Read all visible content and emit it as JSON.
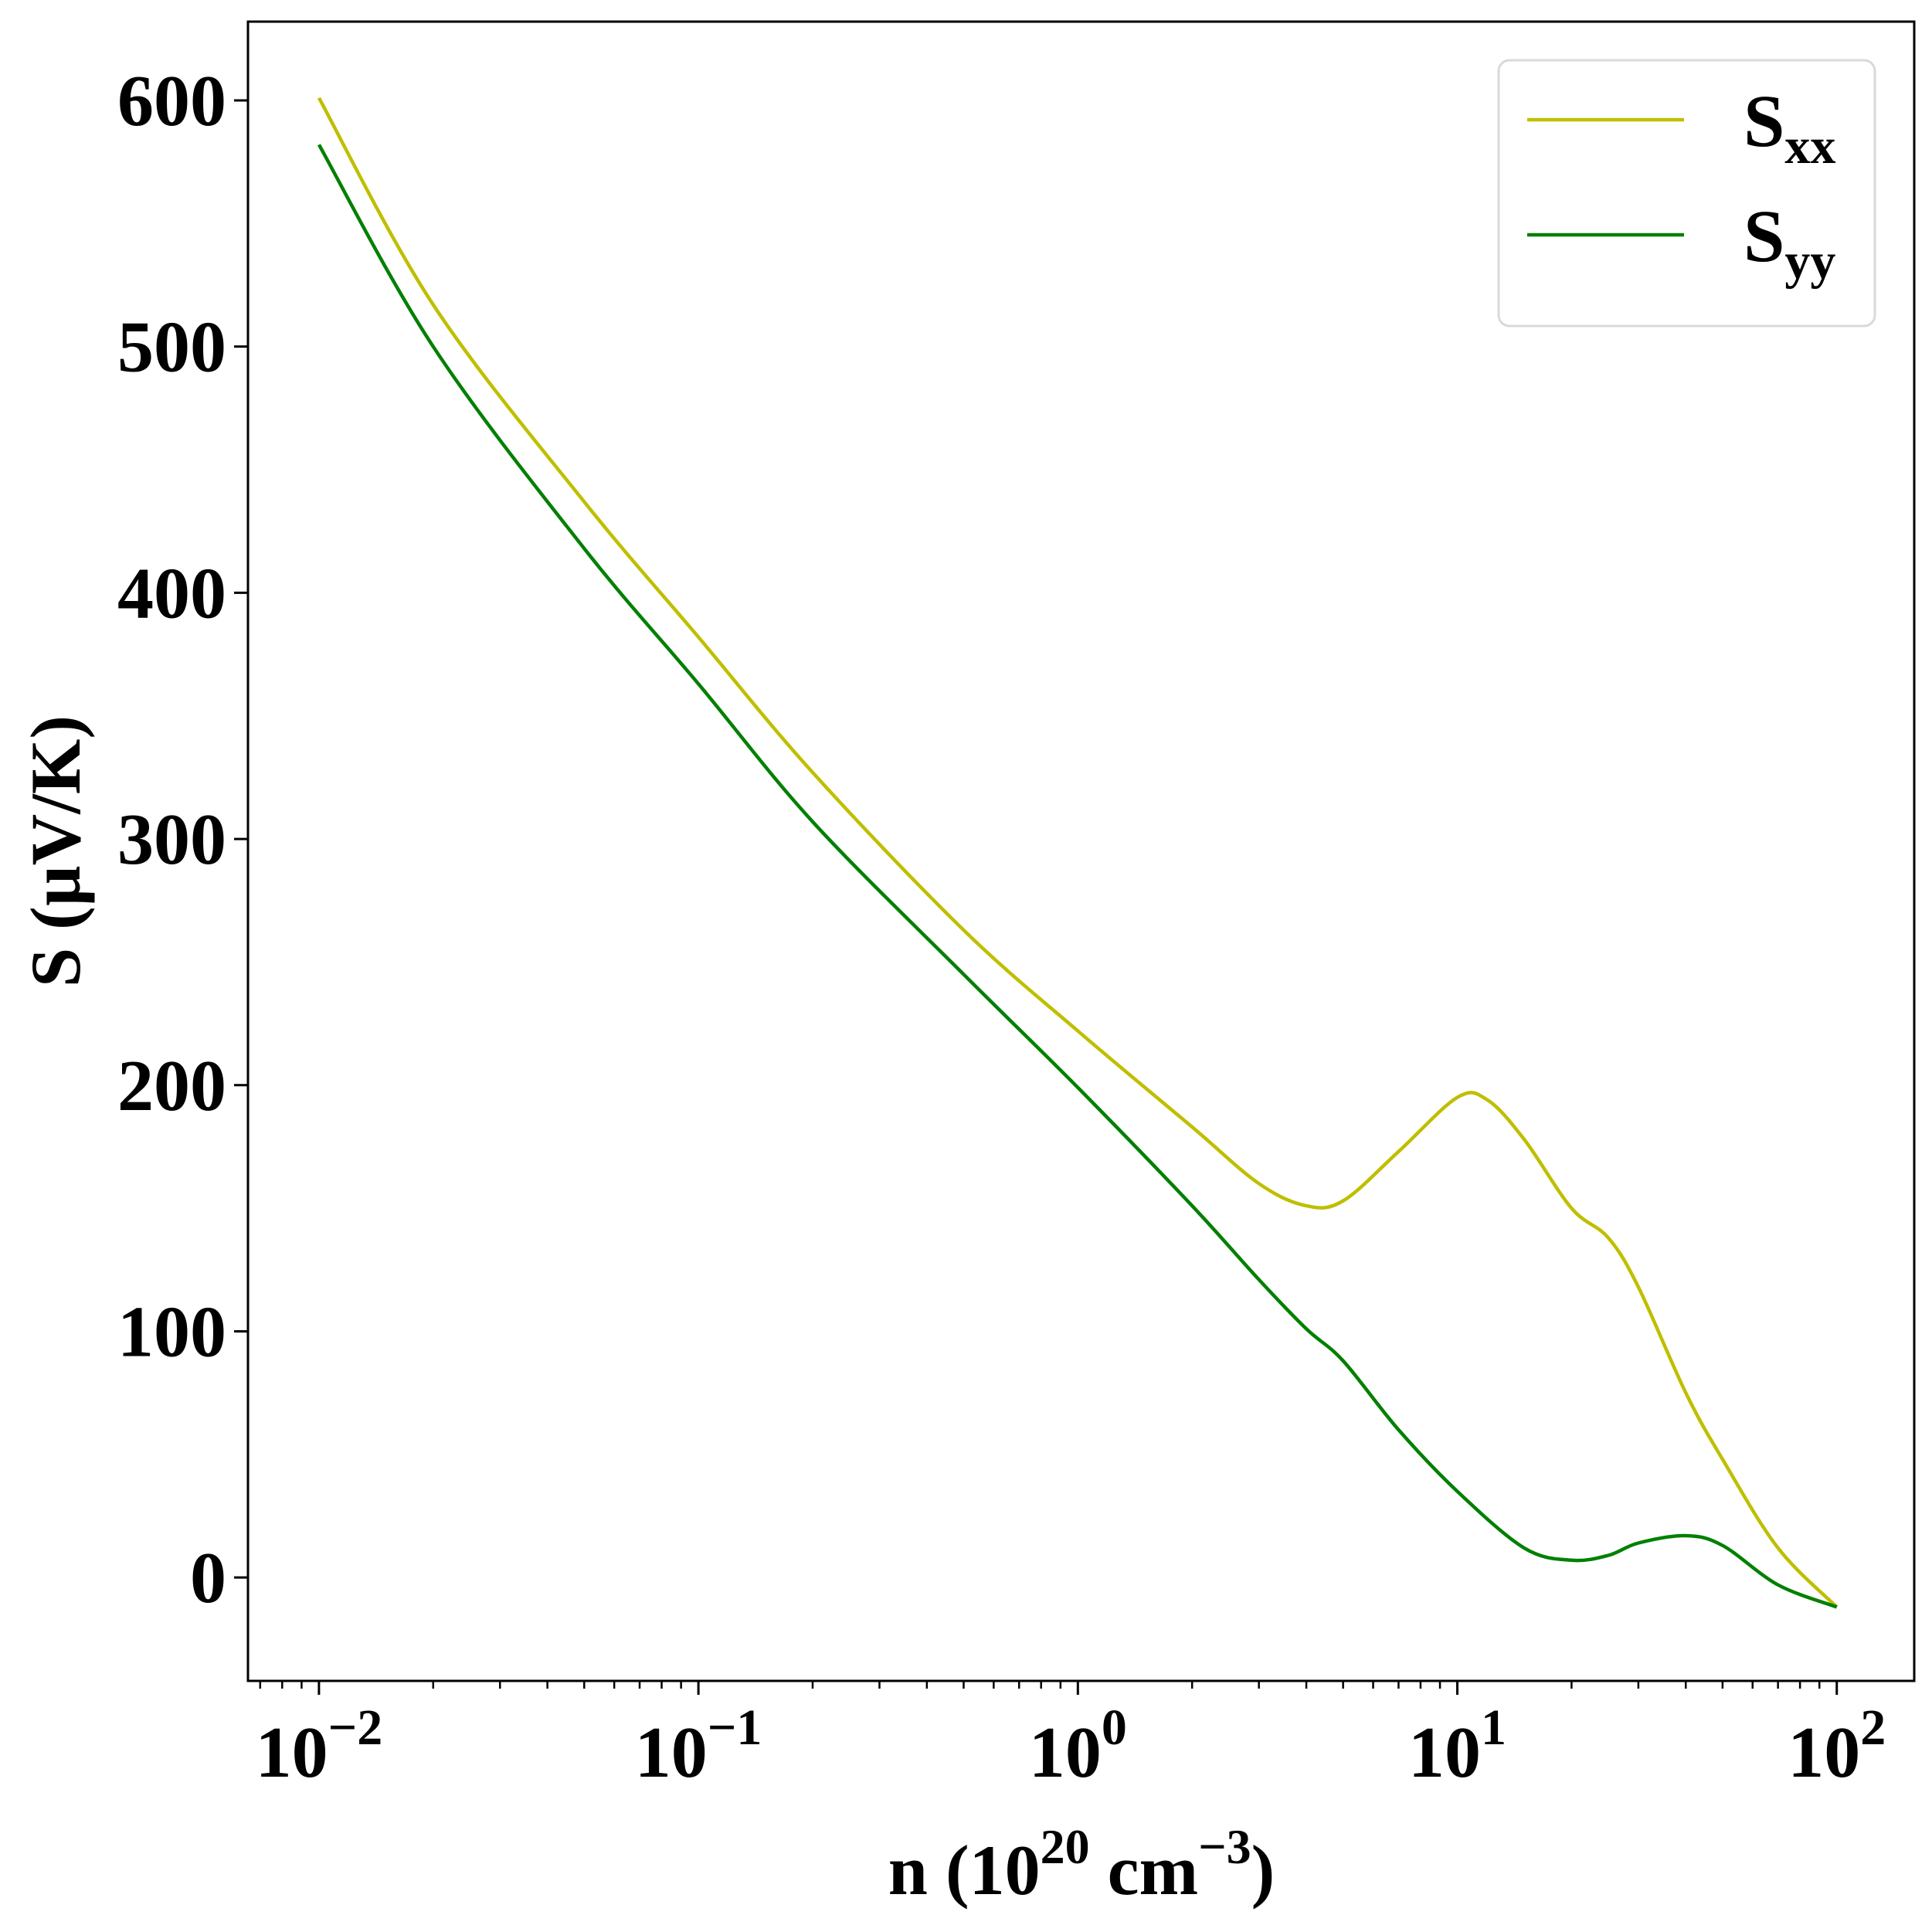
{
  "chart_data": {
    "type": "line",
    "title": "",
    "x_scale": "log",
    "xlim": [
      0.0065,
      160
    ],
    "ylim": [
      -42,
      632
    ],
    "grid": false,
    "legend_position": "top-right",
    "xlabel": {
      "main": "n (10",
      "sup1": "20",
      "mid": " cm",
      "sup2": "−3",
      "end": ")"
    },
    "ylabel": "S (µV/K)",
    "x_ticks": [
      {
        "value": 0.01,
        "base": "10",
        "exp": "−2"
      },
      {
        "value": 0.1,
        "base": "10",
        "exp": "−1"
      },
      {
        "value": 1,
        "base": "10",
        "exp": "0"
      },
      {
        "value": 10,
        "base": "10",
        "exp": "1"
      },
      {
        "value": 100,
        "base": "10",
        "exp": "2"
      }
    ],
    "y_ticks": [
      0,
      100,
      200,
      300,
      400,
      500,
      600
    ],
    "series": [
      {
        "name_main": "S",
        "name_sub": "xx",
        "color": "#bfbf00",
        "points": [
          [
            0.01,
            601
          ],
          [
            0.02,
            517
          ],
          [
            0.05,
            437
          ],
          [
            0.1,
            382
          ],
          [
            0.2,
            327
          ],
          [
            0.5,
            263
          ],
          [
            1,
            222
          ],
          [
            2,
            183
          ],
          [
            3,
            160
          ],
          [
            4,
            151
          ],
          [
            5,
            153
          ],
          [
            7,
            173
          ],
          [
            10,
            195
          ],
          [
            12,
            194
          ],
          [
            15,
            178
          ],
          [
            20,
            150
          ],
          [
            25,
            138
          ],
          [
            30,
            118
          ],
          [
            40,
            75
          ],
          [
            50,
            48
          ],
          [
            70,
            12
          ],
          [
            100,
            -12
          ]
        ]
      },
      {
        "name_main": "S",
        "name_sub": "yy",
        "color": "#008000",
        "points": [
          [
            0.01,
            582
          ],
          [
            0.02,
            500
          ],
          [
            0.05,
            418
          ],
          [
            0.1,
            363
          ],
          [
            0.2,
            307
          ],
          [
            0.5,
            245
          ],
          [
            1,
            199
          ],
          [
            2,
            151
          ],
          [
            3,
            121
          ],
          [
            4,
            101
          ],
          [
            5,
            88
          ],
          [
            7,
            60
          ],
          [
            10,
            35
          ],
          [
            15,
            12
          ],
          [
            20,
            7
          ],
          [
            25,
            9
          ],
          [
            30,
            14
          ],
          [
            40,
            17
          ],
          [
            50,
            13
          ],
          [
            70,
            -3
          ],
          [
            100,
            -12
          ]
        ]
      }
    ]
  }
}
